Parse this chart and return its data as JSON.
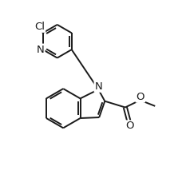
{
  "background_color": "#ffffff",
  "line_color": "#1a1a1a",
  "line_width": 1.4,
  "font_size": 8.5,
  "figsize": [
    2.38,
    2.43
  ],
  "dpi": 100,
  "xlim": [
    0,
    10
  ],
  "ylim": [
    0,
    10.2
  ]
}
